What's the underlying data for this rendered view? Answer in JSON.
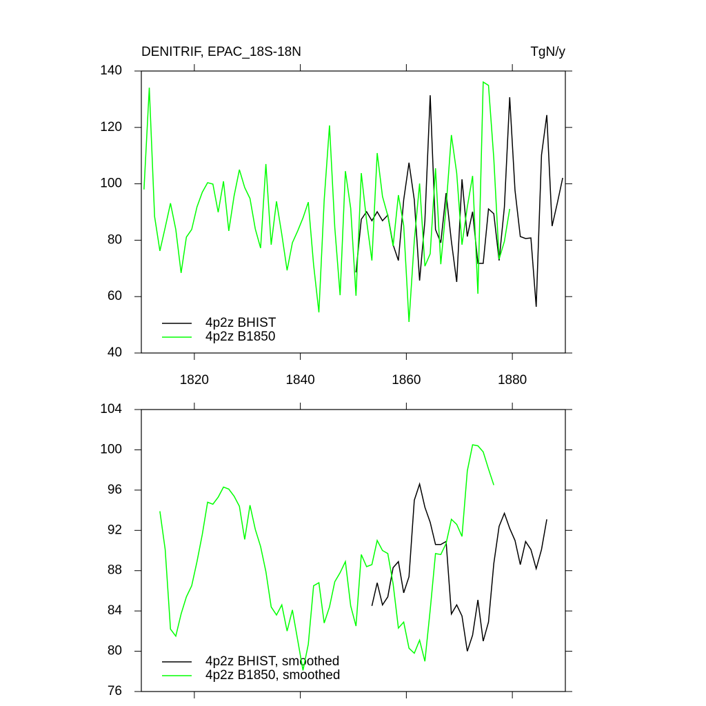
{
  "chart_data": [
    {
      "type": "line",
      "title": "DENITRIF, EPAC_18S-18N",
      "units": "TgN/y",
      "xlim": [
        1810,
        1890
      ],
      "xticks": [
        1820,
        1840,
        1860,
        1880
      ],
      "ylim": [
        40,
        140
      ],
      "yticks": [
        40,
        60,
        80,
        100,
        120,
        140
      ],
      "legend": "lower left",
      "series": [
        {
          "name": "4p2z BHIST",
          "color": "#000000",
          "x": [
            1850.5,
            1851.5,
            1852.5,
            1853.5,
            1854.5,
            1855.5,
            1856.5,
            1857.5,
            1858.5,
            1859.5,
            1860.5,
            1861.5,
            1862.5,
            1863.5,
            1864.5,
            1865.5,
            1866.5,
            1867.5,
            1868.5,
            1869.5,
            1870.5,
            1871.5,
            1872.5,
            1873.5,
            1874.5,
            1875.5,
            1876.5,
            1877.5,
            1878.5,
            1879.5,
            1880.5,
            1881.5,
            1882.5,
            1883.5,
            1884.5,
            1885.5,
            1886.5,
            1887.5,
            1888.5,
            1889.5
          ],
          "values": [
            68.6,
            87.4,
            90.1,
            86.9,
            90.1,
            86.9,
            88.9,
            78.4,
            72.8,
            94.3,
            107.5,
            94.3,
            65.7,
            86.9,
            131.4,
            83.8,
            79.1,
            96.7,
            79.6,
            65.2,
            101.6,
            81.3,
            90.1,
            71.8,
            71.8,
            91.1,
            89.4,
            72.8,
            91.8,
            130.7,
            97.7,
            81.3,
            80.6,
            80.8,
            56.4,
            110.2,
            124.4,
            85.0,
            93.3,
            102.1
          ]
        },
        {
          "name": "4p2z B1850",
          "color": "#00ff00",
          "x": [
            1810.5,
            1811.5,
            1812.5,
            1813.5,
            1814.5,
            1815.5,
            1816.5,
            1817.5,
            1818.5,
            1819.5,
            1820.5,
            1821.5,
            1822.5,
            1823.5,
            1824.5,
            1825.5,
            1826.5,
            1827.5,
            1828.5,
            1829.5,
            1830.5,
            1831.5,
            1832.5,
            1833.5,
            1834.5,
            1835.5,
            1836.5,
            1837.5,
            1838.5,
            1839.5,
            1840.5,
            1841.5,
            1842.5,
            1843.5,
            1844.5,
            1845.5,
            1846.5,
            1847.5,
            1848.5,
            1849.5,
            1850.5,
            1851.5,
            1852.5,
            1853.5,
            1854.5,
            1855.5,
            1856.5,
            1857.5,
            1858.5,
            1859.5,
            1860.5,
            1861.5,
            1862.5,
            1863.5,
            1864.5,
            1865.5,
            1866.5,
            1867.5,
            1868.5,
            1869.5,
            1870.5,
            1871.5,
            1872.5,
            1873.5,
            1874.5,
            1875.5,
            1876.5,
            1877.5,
            1878.5,
            1879.5
          ],
          "values": [
            98.0,
            134.1,
            88.4,
            76.2,
            84.5,
            93.1,
            83.8,
            68.4,
            81.1,
            83.8,
            91.8,
            97.0,
            100.4,
            99.9,
            89.9,
            100.9,
            83.3,
            95.7,
            105.0,
            98.7,
            94.8,
            84.0,
            77.2,
            107.0,
            78.4,
            93.8,
            82.1,
            69.3,
            79.1,
            83.3,
            87.9,
            93.5,
            71.3,
            54.4,
            94.3,
            120.7,
            84.5,
            60.5,
            104.5,
            91.3,
            60.3,
            103.8,
            86.9,
            72.8,
            110.9,
            95.5,
            88.7,
            77.9,
            96.0,
            85.2,
            51.0,
            79.9,
            100.1,
            70.8,
            75.2,
            105.5,
            71.5,
            91.8,
            117.3,
            103.8,
            78.4,
            91.8,
            102.8,
            61.0,
            136.1,
            134.9,
            109.0,
            73.3,
            79.6,
            91.1
          ]
        }
      ]
    },
    {
      "type": "line",
      "xlim": [
        1810,
        1890
      ],
      "xticks": [
        1820,
        1840,
        1860,
        1880
      ],
      "ylim": [
        76,
        104
      ],
      "yticks": [
        76,
        80,
        84,
        88,
        92,
        96,
        100,
        104
      ],
      "legend": "lower left",
      "series": [
        {
          "name": "4p2z BHIST, smoothed",
          "color": "#000000",
          "x": [
            1853.5,
            1854.5,
            1855.5,
            1856.5,
            1857.5,
            1858.5,
            1859.5,
            1860.5,
            1861.5,
            1862.5,
            1863.5,
            1864.5,
            1865.5,
            1866.5,
            1867.5,
            1868.5,
            1869.5,
            1870.5,
            1871.5,
            1872.5,
            1873.5,
            1874.5,
            1875.5,
            1876.5,
            1877.5,
            1878.5,
            1879.5,
            1880.5,
            1881.5,
            1882.5,
            1883.5,
            1884.5,
            1885.5,
            1886.5
          ],
          "values": [
            84.5,
            86.8,
            84.6,
            85.4,
            88.3,
            88.9,
            85.8,
            87.4,
            95.0,
            96.6,
            94.3,
            92.8,
            90.6,
            90.6,
            90.9,
            83.7,
            84.6,
            83.5,
            80.0,
            81.6,
            85.1,
            81.0,
            82.9,
            88.7,
            92.4,
            93.7,
            92.2,
            91.0,
            88.6,
            90.9,
            90.1,
            88.2,
            90.1,
            93.1
          ]
        },
        {
          "name": "4p2z B1850, smoothed",
          "color": "#00ff00",
          "x": [
            1813.5,
            1814.5,
            1815.5,
            1816.5,
            1817.5,
            1818.5,
            1819.5,
            1820.5,
            1821.5,
            1822.5,
            1823.5,
            1824.5,
            1825.5,
            1826.5,
            1827.5,
            1828.5,
            1829.5,
            1830.5,
            1831.5,
            1832.5,
            1833.5,
            1834.5,
            1835.5,
            1836.5,
            1837.5,
            1838.5,
            1839.5,
            1840.5,
            1841.5,
            1842.5,
            1843.5,
            1844.5,
            1845.5,
            1846.5,
            1847.5,
            1848.5,
            1849.5,
            1850.5,
            1851.5,
            1852.5,
            1853.5,
            1854.5,
            1855.5,
            1856.5,
            1857.5,
            1858.5,
            1859.5,
            1860.5,
            1861.5,
            1862.5,
            1863.5,
            1864.5,
            1865.5,
            1866.5,
            1867.5,
            1868.5,
            1869.5,
            1870.5,
            1871.5,
            1872.5,
            1873.5,
            1874.5,
            1875.5,
            1876.5
          ],
          "values": [
            93.9,
            90.1,
            82.2,
            81.5,
            83.7,
            85.4,
            86.5,
            88.9,
            91.6,
            94.8,
            94.6,
            95.3,
            96.3,
            96.1,
            95.4,
            94.4,
            91.1,
            94.5,
            92.1,
            90.4,
            87.9,
            84.4,
            83.6,
            84.6,
            82.0,
            84.1,
            81.1,
            78.1,
            80.7,
            86.5,
            86.8,
            82.8,
            84.4,
            86.9,
            87.8,
            88.9,
            84.5,
            82.5,
            89.6,
            88.4,
            88.6,
            91.0,
            90.0,
            89.7,
            86.7,
            82.3,
            82.9,
            80.3,
            79.8,
            81.1,
            79.0,
            84.1,
            89.7,
            89.6,
            90.7,
            93.1,
            92.6,
            91.4,
            97.9,
            100.5,
            100.4,
            99.8,
            98.1,
            96.5
          ]
        }
      ]
    }
  ]
}
